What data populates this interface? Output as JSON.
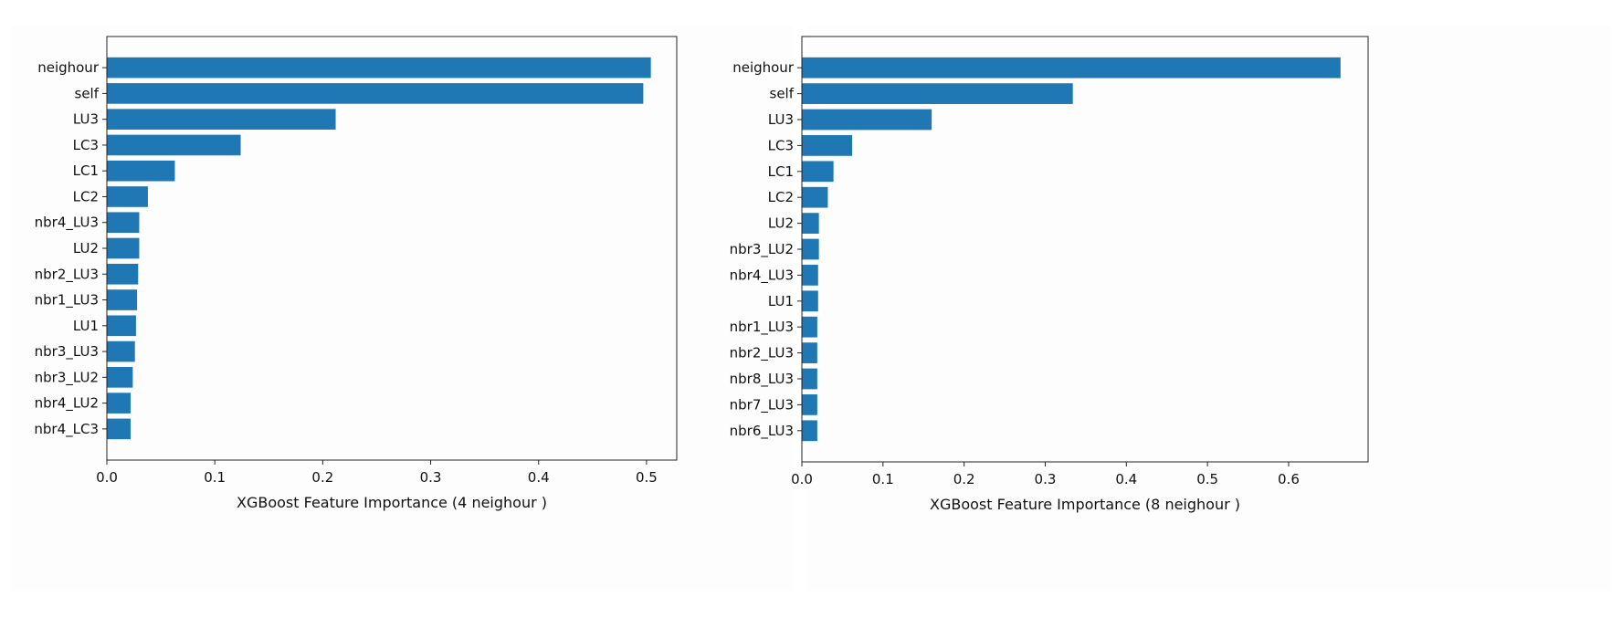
{
  "chart_data": [
    {
      "type": "bar",
      "orientation": "horizontal",
      "categories": [
        "neighour",
        "self",
        "LU3",
        "LC3",
        "LC1",
        "LC2",
        "nbr4_LU3",
        "LU2",
        "nbr2_LU3",
        "nbr1_LU3",
        "LU1",
        "nbr3_LU3",
        "nbr3_LU2",
        "nbr4_LU2",
        "nbr4_LC3"
      ],
      "values": [
        0.504,
        0.497,
        0.212,
        0.124,
        0.063,
        0.038,
        0.03,
        0.03,
        0.029,
        0.028,
        0.027,
        0.026,
        0.024,
        0.022,
        0.022
      ],
      "xlabel": "XGBoost Feature Importance (4 neighour )",
      "ylabel": "",
      "xlim": [
        0,
        0.528
      ],
      "xticks": [
        "0.0",
        "0.1",
        "0.2",
        "0.3",
        "0.4",
        "0.5"
      ],
      "bar_color": "#1f77b4",
      "grid": false
    },
    {
      "type": "bar",
      "orientation": "horizontal",
      "categories": [
        "neighour",
        "self",
        "LU3",
        "LC3",
        "LC1",
        "LC2",
        "LU2",
        "nbr3_LU2",
        "nbr4_LU3",
        "LU1",
        "nbr1_LU3",
        "nbr2_LU3",
        "nbr8_LU3",
        "nbr7_LU3",
        "nbr6_LU3"
      ],
      "values": [
        0.664,
        0.334,
        0.16,
        0.062,
        0.039,
        0.032,
        0.021,
        0.021,
        0.02,
        0.02,
        0.019,
        0.019,
        0.019,
        0.019,
        0.019
      ],
      "xlabel": "XGBoost Feature Importance (8 neighour )",
      "ylabel": "",
      "xlim": [
        0,
        0.698
      ],
      "xticks": [
        "0.0",
        "0.1",
        "0.2",
        "0.3",
        "0.4",
        "0.5",
        "0.6"
      ],
      "bar_color": "#1f77b4",
      "grid": false
    }
  ]
}
